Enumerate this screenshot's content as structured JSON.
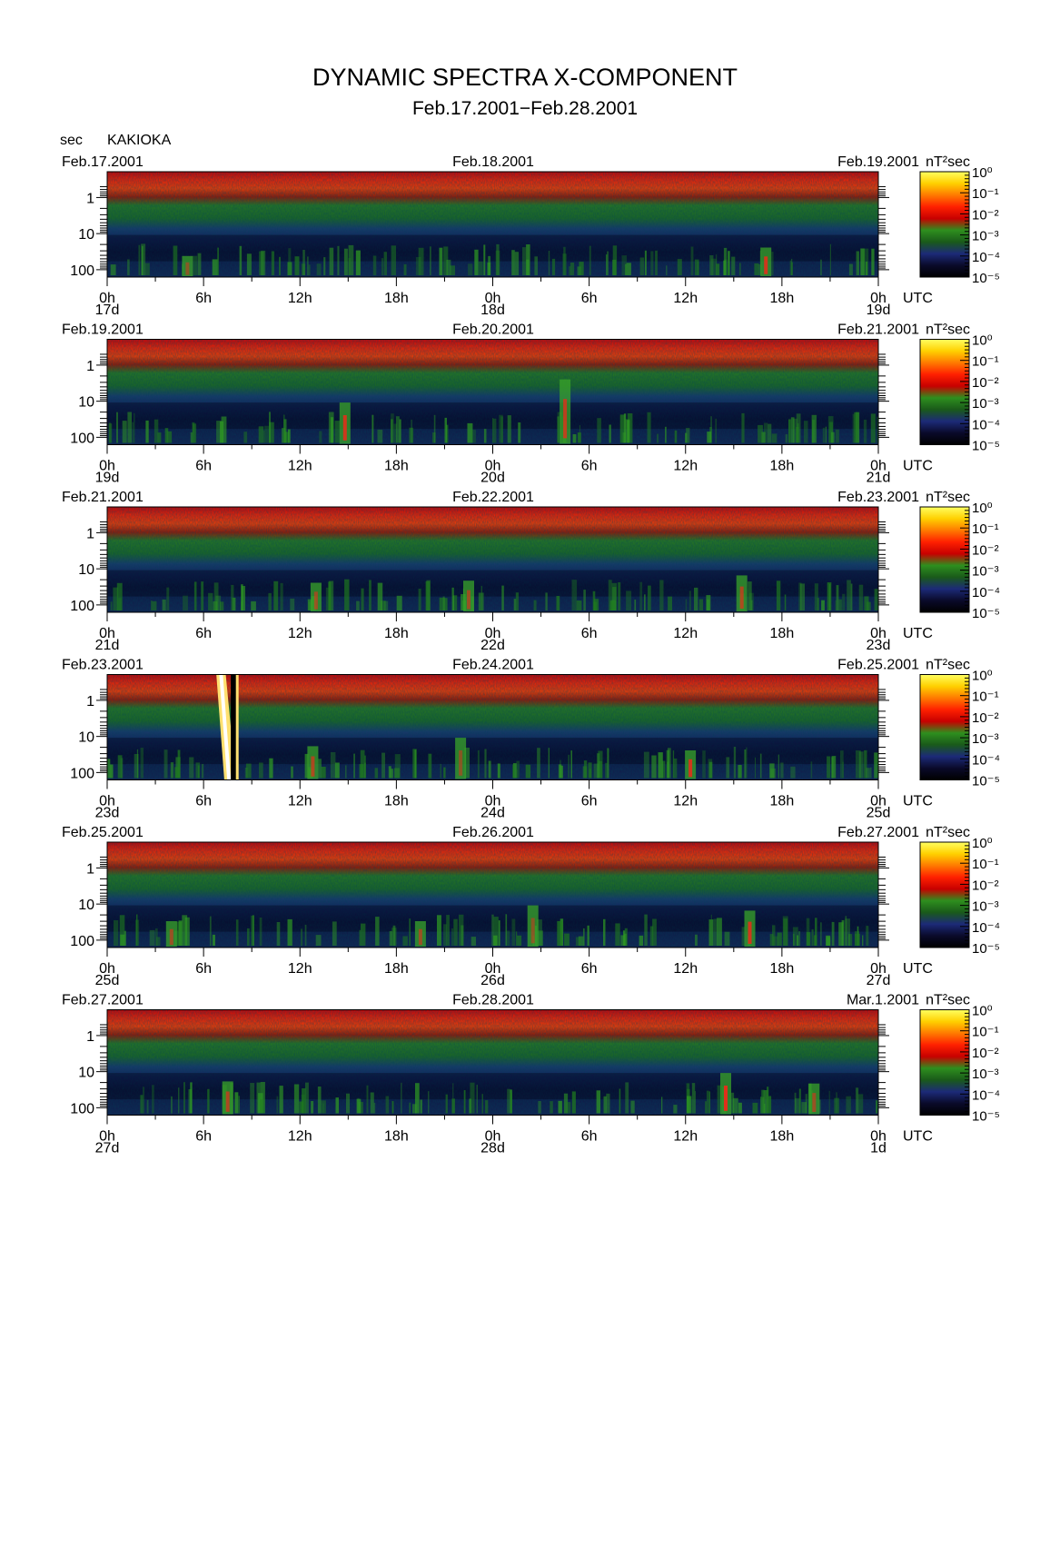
{
  "header": {
    "title": "DYNAMIC SPECTRA X-COMPONENT",
    "subtitle": "Feb.17.2001−Feb.28.2001",
    "unit": "sec",
    "station": "KAKIOKA"
  },
  "chart_data": {
    "type": "heatmap",
    "y_axis": {
      "scale": "log",
      "ticks": [
        "1",
        "10",
        "100"
      ]
    },
    "x_axis": {
      "ticks": [
        "0h",
        "6h",
        "12h",
        "18h",
        "0h",
        "6h",
        "12h",
        "18h",
        "0h"
      ],
      "unit_label": "UTC"
    },
    "colorbar": {
      "label": "nT²sec",
      "ticks": [
        "10⁰",
        "10⁻¹",
        "10⁻²",
        "10⁻³",
        "10⁻⁴",
        "10⁻⁵"
      ],
      "colors": [
        "#ffff60",
        "#ffd000",
        "#ff7a00",
        "#ff2000",
        "#c80000",
        "#2e8f1e",
        "#1a5a1a",
        "#1c2a78",
        "#0a0a2a",
        "#000000"
      ]
    },
    "panels": [
      {
        "date_left": "Feb.17.2001",
        "date_mid": "Feb.18.2001",
        "date_right": "Feb.19.2001",
        "day_labels": [
          "17d",
          "18d",
          "19d"
        ],
        "events": [
          {
            "t": 41,
            "lo": 0.72,
            "i": 0.9
          },
          {
            "t": 5,
            "lo": 0.8,
            "i": 0.5
          }
        ]
      },
      {
        "date_left": "Feb.19.2001",
        "date_mid": "Feb.20.2001",
        "date_right": "Feb.21.2001",
        "day_labels": [
          "19d",
          "20d",
          "21d"
        ],
        "events": [
          {
            "t": 14.8,
            "lo": 0.6,
            "i": 0.9
          },
          {
            "t": 28.5,
            "lo": 0.38,
            "i": 0.8
          }
        ]
      },
      {
        "date_left": "Feb.21.2001",
        "date_mid": "Feb.22.2001",
        "date_right": "Feb.23.2001",
        "day_labels": [
          "21d",
          "22d",
          "23d"
        ],
        "events": [
          {
            "t": 13,
            "lo": 0.72,
            "i": 0.6
          },
          {
            "t": 22.5,
            "lo": 0.7,
            "i": 0.6
          },
          {
            "t": 39.5,
            "lo": 0.65,
            "i": 0.7
          }
        ]
      },
      {
        "date_left": "Feb.23.2001",
        "date_mid": "Feb.24.2001",
        "date_right": "Feb.25.2001",
        "day_labels": [
          "23d",
          "24d",
          "25d"
        ],
        "events": [
          {
            "t": 12.8,
            "lo": 0.68,
            "i": 0.7
          },
          {
            "t": 36.3,
            "lo": 0.72,
            "i": 0.9
          },
          {
            "t": 22,
            "lo": 0.6,
            "i": 0.5
          }
        ],
        "storm": {
          "t": 7.2,
          "width_h": 0.9
        }
      },
      {
        "date_left": "Feb.25.2001",
        "date_mid": "Feb.26.2001",
        "date_right": "Feb.27.2001",
        "day_labels": [
          "25d",
          "26d",
          "27d"
        ],
        "events": [
          {
            "t": 4,
            "lo": 0.75,
            "i": 0.6
          },
          {
            "t": 19.5,
            "lo": 0.75,
            "i": 0.6
          },
          {
            "t": 26.5,
            "lo": 0.6,
            "i": 0.5
          },
          {
            "t": 40,
            "lo": 0.65,
            "i": 0.9
          }
        ]
      },
      {
        "date_left": "Feb.27.2001",
        "date_mid": "Feb.28.2001",
        "date_right": "Mar.1.2001",
        "day_labels": [
          "27d",
          "28d",
          "1d"
        ],
        "events": [
          {
            "t": 7.5,
            "lo": 0.68,
            "i": 0.7
          },
          {
            "t": 38.5,
            "lo": 0.6,
            "i": 1.0
          },
          {
            "t": 44,
            "lo": 0.7,
            "i": 0.6
          }
        ]
      }
    ]
  }
}
